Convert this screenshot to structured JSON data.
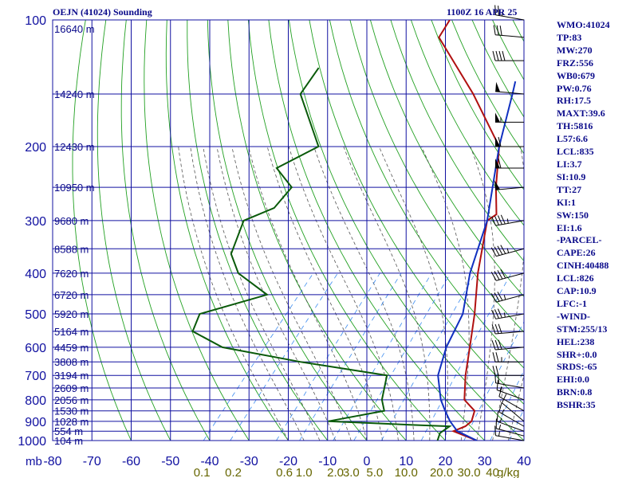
{
  "header": {
    "station": "OEJN (41024) Sounding",
    "time": "1100Z 16 APR 25"
  },
  "indices": [
    "WMO:41024",
    "TP:83",
    "MW:270",
    "FRZ:556",
    "WB0:679",
    "PW:0.76",
    "RH:17.5",
    "MAXT:39.6",
    "TH:5816",
    "L57:6.6",
    "LCL:835",
    "LI:3.7",
    "SI:10.9",
    "TT:27",
    "KI:1",
    "SW:150",
    "EI:1.6",
    "-PARCEL-",
    "CAPE:26",
    "CINH:40488",
    "LCL:826",
    "CAP:10.9",
    "LFC:-1",
    "-WIND-",
    "STM:255/13",
    "HEL:238",
    "SHR+:0.0",
    "SRDS:-65",
    "EHI:0.0",
    "BRN:0.8",
    "BSHR:35"
  ],
  "colors": {
    "grid": "#1010a0",
    "dry_adiabat": "#22a022",
    "moist_adiabat": "#555555",
    "mixing_ratio": "#3c8cf0",
    "temperature": "#b01010",
    "dewpoint": "#0a5a0a",
    "parcel": "#1030c0",
    "labels": "#0a0a8a",
    "mixing_labels": "#666600",
    "wind": "#000000"
  },
  "chart_data": {
    "type": "line",
    "title": "OEJN (41024) Sounding",
    "subtitle": "1100Z 16 APR 25",
    "xlabel": "",
    "ylabel": "mb",
    "x_axis": "temperature (C), skewed",
    "y_axis": "pressure (mb), log scale",
    "xlim": [
      -80,
      40
    ],
    "ylim": [
      1000,
      100
    ],
    "temperature_ticks": [
      -80,
      -70,
      -60,
      -50,
      -40,
      -30,
      -20,
      -10,
      0,
      10,
      20,
      30,
      40
    ],
    "pressure_ticks": [
      100,
      200,
      300,
      400,
      500,
      600,
      700,
      800,
      900,
      1000
    ],
    "height_labels": [
      {
        "p": 105,
        "label": "16640 m"
      },
      {
        "p": 150,
        "label": "14240 m"
      },
      {
        "p": 200,
        "label": "12430 m"
      },
      {
        "p": 250,
        "label": "10950 m"
      },
      {
        "p": 300,
        "label": "9680 m"
      },
      {
        "p": 350,
        "label": "8588 m"
      },
      {
        "p": 400,
        "label": "7620 m"
      },
      {
        "p": 450,
        "label": "6720 m"
      },
      {
        "p": 500,
        "label": "5920 m"
      },
      {
        "p": 550,
        "label": "5164 m"
      },
      {
        "p": 600,
        "label": "4459 m"
      },
      {
        "p": 650,
        "label": "3808 m"
      },
      {
        "p": 700,
        "label": "3194 m"
      },
      {
        "p": 750,
        "label": "2609 m"
      },
      {
        "p": 800,
        "label": "2056 m"
      },
      {
        "p": 850,
        "label": "1530 m"
      },
      {
        "p": 900,
        "label": "1028 m"
      },
      {
        "p": 950,
        "label": "554 m"
      },
      {
        "p": 1000,
        "label": "104 m"
      }
    ],
    "mixing_ratio_labels": [
      "0.1",
      "0.2",
      "0.6",
      "1.0",
      "2.0",
      "3.0",
      "5.0",
      "10.0",
      "20.0",
      "30.0",
      "40",
      "g/kg"
    ],
    "mixing_ratio_label_t": [
      -42,
      -34,
      -21,
      -16,
      -8,
      -4,
      2,
      10,
      19,
      26,
      32,
      36
    ],
    "series": [
      {
        "name": "temperature",
        "points": [
          [
            1000,
            28
          ],
          [
            950,
            20
          ],
          [
            925,
            22
          ],
          [
            900,
            22.5
          ],
          [
            850,
            21
          ],
          [
            800,
            16
          ],
          [
            700,
            11
          ],
          [
            600,
            6
          ],
          [
            500,
            0
          ],
          [
            400,
            -8
          ],
          [
            300,
            -17
          ],
          [
            290,
            -16
          ],
          [
            250,
            -22
          ],
          [
            200,
            -30
          ],
          [
            150,
            -48
          ],
          [
            110,
            -69
          ],
          [
            100,
            -70
          ]
        ]
      },
      {
        "name": "dewpoint",
        "points": [
          [
            1000,
            18
          ],
          [
            960,
            17
          ],
          [
            925,
            18
          ],
          [
            920,
            11
          ],
          [
            900,
            -14
          ],
          [
            850,
            -2
          ],
          [
            800,
            -5
          ],
          [
            700,
            -9
          ],
          [
            650,
            -34
          ],
          [
            600,
            -57
          ],
          [
            550,
            -68
          ],
          [
            500,
            -70
          ],
          [
            450,
            -57
          ],
          [
            400,
            -69
          ],
          [
            360,
            -75
          ],
          [
            300,
            -79
          ],
          [
            280,
            -74
          ],
          [
            250,
            -74
          ],
          [
            225,
            -82
          ],
          [
            200,
            -76
          ],
          [
            150,
            -92
          ],
          [
            130,
            -93
          ]
        ]
      },
      {
        "name": "parcel",
        "points": [
          [
            1000,
            28
          ],
          [
            950,
            21
          ],
          [
            900,
            17
          ],
          [
            850,
            13.5
          ],
          [
            800,
            10
          ],
          [
            700,
            4
          ],
          [
            600,
            0
          ],
          [
            500,
            -3
          ],
          [
            400,
            -10
          ],
          [
            300,
            -17
          ],
          [
            200,
            -30
          ],
          [
            150,
            -38
          ],
          [
            140,
            -40
          ]
        ]
      }
    ],
    "wind_barbs": [
      {
        "p": 1000,
        "dir": 280,
        "spd": 15
      },
      {
        "p": 975,
        "dir": 285,
        "spd": 15
      },
      {
        "p": 950,
        "dir": 290,
        "spd": 15
      },
      {
        "p": 925,
        "dir": 300,
        "spd": 15
      },
      {
        "p": 900,
        "dir": 310,
        "spd": 10
      },
      {
        "p": 850,
        "dir": 300,
        "spd": 10
      },
      {
        "p": 800,
        "dir": 290,
        "spd": 15
      },
      {
        "p": 750,
        "dir": 280,
        "spd": 20
      },
      {
        "p": 700,
        "dir": 270,
        "spd": 20
      },
      {
        "p": 650,
        "dir": 270,
        "spd": 25
      },
      {
        "p": 600,
        "dir": 265,
        "spd": 30
      },
      {
        "p": 550,
        "dir": 265,
        "spd": 30
      },
      {
        "p": 500,
        "dir": 260,
        "spd": 35
      },
      {
        "p": 450,
        "dir": 255,
        "spd": 35
      },
      {
        "p": 400,
        "dir": 255,
        "spd": 40
      },
      {
        "p": 350,
        "dir": 255,
        "spd": 45
      },
      {
        "p": 300,
        "dir": 260,
        "spd": 45
      },
      {
        "p": 250,
        "dir": 265,
        "spd": 50
      },
      {
        "p": 225,
        "dir": 270,
        "spd": 60
      },
      {
        "p": 200,
        "dir": 270,
        "spd": 60
      },
      {
        "p": 175,
        "dir": 270,
        "spd": 55
      },
      {
        "p": 150,
        "dir": 275,
        "spd": 50
      },
      {
        "p": 125,
        "dir": 270,
        "spd": 40
      },
      {
        "p": 110,
        "dir": 275,
        "spd": 30
      },
      {
        "p": 100,
        "dir": 280,
        "spd": 25
      }
    ]
  }
}
